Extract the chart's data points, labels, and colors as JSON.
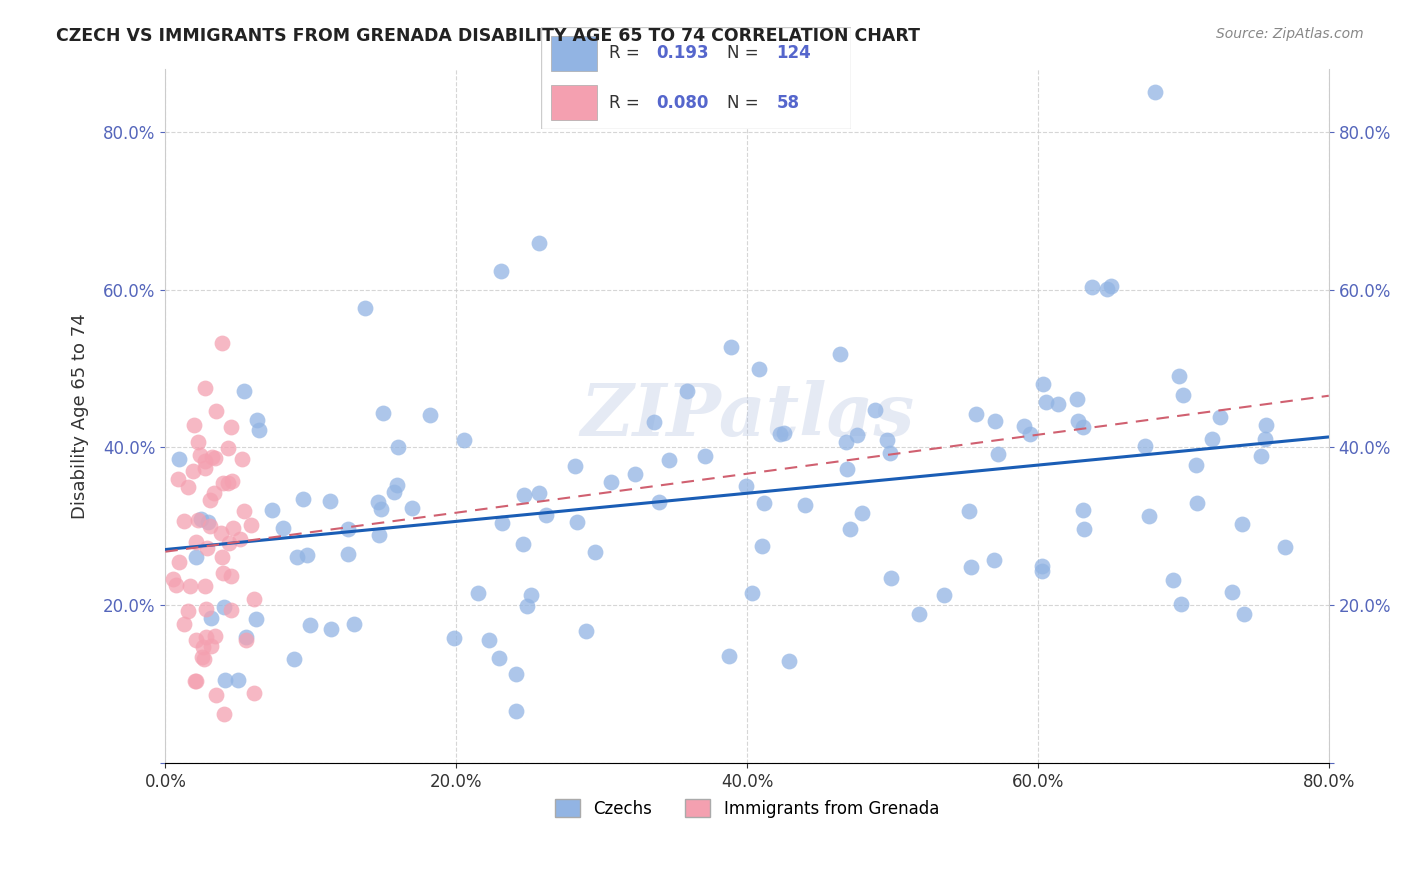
{
  "title": "CZECH VS IMMIGRANTS FROM GRENADA DISABILITY AGE 65 TO 74 CORRELATION CHART",
  "source": "Source: ZipAtlas.com",
  "ylabel": "Disability Age 65 to 74",
  "xlim": [
    0.0,
    0.8
  ],
  "ylim": [
    0.0,
    0.88
  ],
  "xticks": [
    0.0,
    0.2,
    0.4,
    0.6,
    0.8
  ],
  "yticks": [
    0.0,
    0.2,
    0.4,
    0.6,
    0.8
  ],
  "xtick_labels": [
    "0.0%",
    "20.0%",
    "40.0%",
    "60.0%",
    "80.0%"
  ],
  "ytick_labels": [
    "",
    "20.0%",
    "40.0%",
    "60.0%",
    "80.0%"
  ],
  "blue_color": "#92b4e3",
  "pink_color": "#f4a0b0",
  "blue_line_color": "#1a5db5",
  "pink_line_color": "#d06070",
  "watermark": "ZIPatlas",
  "series1_label": "Czechs",
  "series2_label": "Immigrants from Grenada",
  "blue_r": 0.193,
  "blue_n": 124,
  "pink_r": 0.08,
  "pink_n": 58
}
